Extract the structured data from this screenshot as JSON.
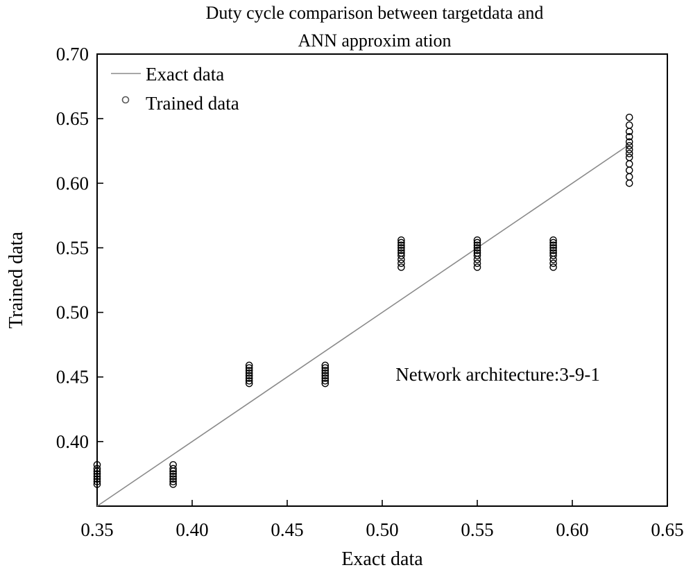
{
  "chart_data": {
    "type": "scatter",
    "title": [
      "Duty cycle comparison between targetdata and",
      "ANN approxim ation"
    ],
    "xlabel": "Exact data",
    "ylabel": "Trained data",
    "xlim": [
      0.35,
      0.65
    ],
    "ylim": [
      0.35,
      0.7
    ],
    "xticks": [
      "0.35",
      "0.40",
      "0.45",
      "0.50",
      "0.55",
      "0.60",
      "0.65"
    ],
    "yticks": [
      "0.40",
      "0.45",
      "0.50",
      "0.55",
      "0.60",
      "0.65",
      "0.70"
    ],
    "grid": false,
    "legend_position": "top-left",
    "series": [
      {
        "name": "Exact data",
        "kind": "line",
        "color": "#8a8a8a",
        "points": [
          [
            0.35,
            0.35
          ],
          [
            0.63,
            0.63
          ]
        ]
      },
      {
        "name": "Trained data",
        "kind": "scatter",
        "marker": "open-circle",
        "color": "#555555",
        "x_groups": [
          0.35,
          0.39,
          0.43,
          0.47,
          0.51,
          0.55,
          0.59,
          0.63
        ],
        "y_groups": [
          [
            0.367,
            0.369,
            0.371,
            0.373,
            0.375,
            0.377,
            0.379,
            0.382
          ],
          [
            0.367,
            0.369,
            0.371,
            0.373,
            0.375,
            0.377,
            0.379,
            0.382
          ],
          [
            0.445,
            0.447,
            0.449,
            0.451,
            0.453,
            0.455,
            0.457,
            0.459
          ],
          [
            0.445,
            0.447,
            0.449,
            0.451,
            0.453,
            0.455,
            0.457,
            0.459
          ],
          [
            0.535,
            0.538,
            0.541,
            0.544,
            0.546,
            0.548,
            0.55,
            0.552,
            0.554,
            0.556
          ],
          [
            0.535,
            0.538,
            0.541,
            0.544,
            0.546,
            0.548,
            0.55,
            0.552,
            0.554,
            0.556
          ],
          [
            0.535,
            0.538,
            0.541,
            0.544,
            0.546,
            0.548,
            0.55,
            0.552,
            0.554,
            0.556
          ],
          [
            0.6,
            0.605,
            0.61,
            0.615,
            0.62,
            0.623,
            0.626,
            0.629,
            0.632,
            0.636,
            0.64,
            0.645,
            0.651
          ]
        ]
      }
    ],
    "annotations": [
      {
        "text": "Network architecture:3-9-1",
        "x": 0.59,
        "y": 0.452
      }
    ]
  }
}
